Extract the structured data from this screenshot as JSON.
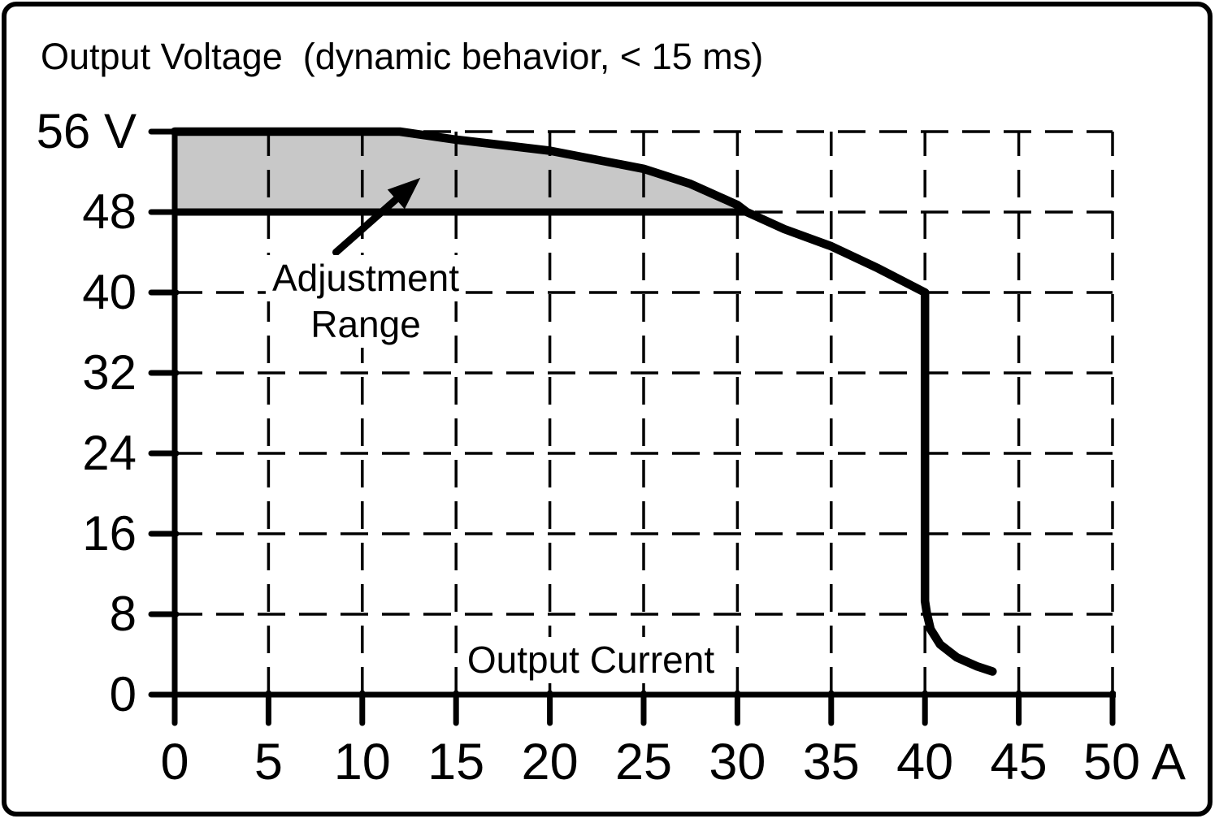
{
  "figure": {
    "title": "Output Voltage  (dynamic behavior, < 15 ms)",
    "annotation": {
      "line1": "Adjustment",
      "line2": "Range"
    },
    "xlabel_inline": "Output Current"
  },
  "colors": {
    "line": "#000000",
    "shade": "#c8c8c8",
    "background": "#ffffff",
    "border": "#000000"
  },
  "chart_data": {
    "type": "line",
    "title": "Output Voltage  (dynamic behavior, < 15 ms)",
    "xlabel": "Output Current",
    "ylabel": "Output Voltage",
    "x_unit": "A",
    "y_unit": "V",
    "xlim": [
      0,
      50
    ],
    "ylim": [
      0,
      56
    ],
    "grid": "dashed",
    "x_ticks": {
      "values": [
        0,
        5,
        10,
        15,
        20,
        25,
        30,
        35,
        40,
        45,
        50
      ],
      "labels": [
        "0",
        "5",
        "10",
        "15",
        "20",
        "25",
        "30",
        "35",
        "40",
        "45",
        "50 A"
      ]
    },
    "y_ticks": {
      "values": [
        56,
        48,
        40,
        32,
        24,
        16,
        8,
        0
      ],
      "labels": [
        "56 V",
        "48",
        "40",
        "32",
        "24",
        "16",
        "8",
        "0"
      ]
    },
    "series": [
      {
        "name": "output-voltage-limit-curve",
        "points": [
          [
            0,
            56
          ],
          [
            12,
            56
          ],
          [
            15,
            55.2
          ],
          [
            20,
            54.1
          ],
          [
            25,
            52.3
          ],
          [
            27.5,
            50.8
          ],
          [
            30,
            48.7
          ],
          [
            30.5,
            48
          ],
          [
            32.5,
            46.3
          ],
          [
            35,
            44.6
          ],
          [
            37.5,
            42.4
          ],
          [
            40,
            40
          ],
          [
            40,
            9.3
          ],
          [
            40.1,
            8.1
          ],
          [
            40.3,
            6.5
          ],
          [
            40.8,
            5.0
          ],
          [
            41.7,
            3.7
          ],
          [
            42.8,
            2.8
          ],
          [
            43.6,
            2.3
          ]
        ]
      },
      {
        "name": "adjustment-lower-limit-48v",
        "points": [
          [
            0,
            48
          ],
          [
            30.5,
            48
          ]
        ]
      }
    ],
    "shaded_region": {
      "name": "adjustment-range",
      "points": [
        [
          0,
          48
        ],
        [
          0,
          56
        ],
        [
          12,
          56
        ],
        [
          15,
          55.2
        ],
        [
          20,
          54.1
        ],
        [
          25,
          52.3
        ],
        [
          27.5,
          50.8
        ],
        [
          30,
          48.7
        ],
        [
          30.5,
          48
        ]
      ]
    },
    "arrow": {
      "from": [
        8.6,
        44.0
      ],
      "to": [
        13.1,
        51.4
      ]
    }
  }
}
